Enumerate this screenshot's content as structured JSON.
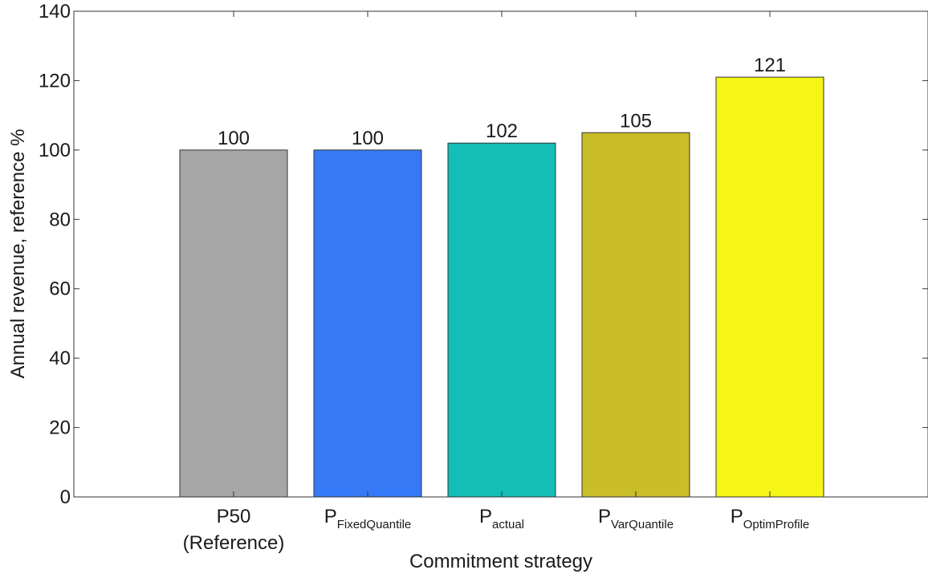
{
  "chart_data": {
    "type": "bar",
    "categories": [
      {
        "main": "P50",
        "sub": "",
        "line2": "(Reference)"
      },
      {
        "main": "P",
        "sub": "FixedQuantile",
        "line2": ""
      },
      {
        "main": "P",
        "sub": "actual",
        "line2": ""
      },
      {
        "main": "P",
        "sub": "VarQuantile",
        "line2": ""
      },
      {
        "main": "P",
        "sub": "OptimProfile",
        "line2": ""
      }
    ],
    "values": [
      100,
      100,
      102,
      105,
      121
    ],
    "value_labels": [
      "100",
      "100",
      "102",
      "105",
      "121"
    ],
    "bar_colors": [
      "#a6a6a6",
      "#3579f6",
      "#14bdb6",
      "#c9bd2a",
      "#f5f516"
    ],
    "title": "",
    "xlabel": "Commitment strategy",
    "ylabel": "Annual revenue, reference %",
    "ylim": [
      0,
      140
    ],
    "yticks": [
      "0",
      "20",
      "40",
      "60",
      "80",
      "100",
      "120",
      "140"
    ],
    "grid": false,
    "legend": "none"
  }
}
